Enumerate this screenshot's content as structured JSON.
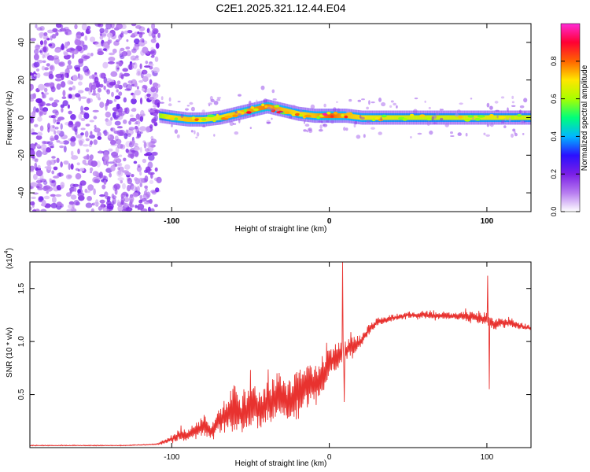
{
  "figure_title": "C2E1.2025.321.12.44.E04",
  "colors": {
    "snr_line": "#e8322f",
    "axis": "#000000",
    "background": "#ffffff",
    "colormap": [
      "#ffffff",
      "#b77cf0",
      "#7a1fe6",
      "#2a10ff",
      "#00b7ff",
      "#00ff7a",
      "#a8ff00",
      "#ffe600",
      "#ff6400",
      "#ff0033",
      "#ff2bd6"
    ]
  },
  "chart_data": [
    {
      "type": "heatmap",
      "title": "",
      "xlabel": "Height of straight line (km)",
      "ylabel": "Frequency (Hz)",
      "xlim": [
        -190,
        128
      ],
      "ylim": [
        -50,
        50
      ],
      "xticks": [
        -100,
        0,
        100
      ],
      "xtick_labels": [
        "-100",
        "0",
        "100"
      ],
      "yticks": [
        -40,
        -20,
        0,
        20,
        40
      ],
      "ytick_labels": [
        "-40",
        "-20",
        "0",
        "20",
        "40"
      ],
      "noise_region_x": [
        -190,
        -108
      ],
      "ridge": {
        "x": [
          -108,
          -100,
          -90,
          -80,
          -70,
          -60,
          -50,
          -40,
          -30,
          -20,
          -10,
          0,
          10,
          20,
          30,
          60,
          100,
          128
        ],
        "frequency": [
          1,
          0,
          -1,
          -1,
          0,
          2,
          4,
          6,
          4,
          2,
          1,
          1,
          1,
          0,
          0,
          0,
          0,
          0
        ],
        "amplitude": [
          0.35,
          0.55,
          0.6,
          0.55,
          0.5,
          0.6,
          0.65,
          0.7,
          0.6,
          0.55,
          0.6,
          0.75,
          0.6,
          0.55,
          0.5,
          0.45,
          0.5,
          0.45
        ]
      },
      "colorbar": {
        "label": "Normalized spectral amplitude",
        "range": [
          0.0,
          1.0
        ],
        "ticks": [
          0.0,
          0.2,
          0.4,
          0.6,
          0.8
        ],
        "tick_labels": [
          "0.0",
          "0.2",
          "0.4",
          "0.6",
          "0.8"
        ]
      }
    },
    {
      "type": "line",
      "title": "",
      "xlabel": "Height of straight line (km)",
      "ylabel": "SNR (10 * v/v)",
      "scale_label": "(x10",
      "scale_exponent": "4",
      "xlim": [
        -190,
        128
      ],
      "ylim": [
        0.0,
        1.75
      ],
      "xticks": [
        -100,
        0,
        100
      ],
      "xtick_labels": [
        "-100",
        "0",
        "100"
      ],
      "yticks": [
        0.5,
        1.0,
        1.5
      ],
      "ytick_labels": [
        "0.5",
        "1.0",
        "1.5"
      ],
      "series": [
        {
          "name": "SNR",
          "x": [
            -190,
            -160,
            -130,
            -110,
            -100,
            -95,
            -90,
            -85,
            -80,
            -75,
            -70,
            -65,
            -60,
            -55,
            -50,
            -45,
            -40,
            -35,
            -30,
            -25,
            -20,
            -15,
            -10,
            -5,
            0,
            5,
            10,
            15,
            20,
            25,
            30,
            40,
            50,
            60,
            70,
            80,
            90,
            95,
            100,
            105,
            110,
            120,
            128
          ],
          "y": [
            0.02,
            0.02,
            0.02,
            0.03,
            0.08,
            0.12,
            0.1,
            0.15,
            0.2,
            0.15,
            0.25,
            0.3,
            0.35,
            0.3,
            0.4,
            0.35,
            0.4,
            0.45,
            0.5,
            0.4,
            0.5,
            0.55,
            0.6,
            0.6,
            0.8,
            0.85,
            0.9,
            0.95,
            1.0,
            1.1,
            1.18,
            1.22,
            1.25,
            1.25,
            1.24,
            1.24,
            1.23,
            1.22,
            1.2,
            1.15,
            1.18,
            1.15,
            1.12
          ],
          "spread": [
            0.003,
            0.003,
            0.003,
            0.005,
            0.03,
            0.06,
            0.05,
            0.08,
            0.1,
            0.08,
            0.12,
            0.18,
            0.22,
            0.2,
            0.22,
            0.2,
            0.2,
            0.22,
            0.22,
            0.2,
            0.2,
            0.2,
            0.18,
            0.18,
            0.12,
            0.12,
            0.1,
            0.08,
            0.06,
            0.05,
            0.04,
            0.03,
            0.03,
            0.03,
            0.03,
            0.03,
            0.05,
            0.06,
            0.06,
            0.05,
            0.04,
            0.03,
            0.03
          ]
        }
      ],
      "spikes": [
        {
          "x": 8.5,
          "y": 1.75
        },
        {
          "x": 9.5,
          "y": 0.43
        },
        {
          "x": 100.5,
          "y": 1.62
        },
        {
          "x": 101.5,
          "y": 0.55
        }
      ]
    }
  ]
}
